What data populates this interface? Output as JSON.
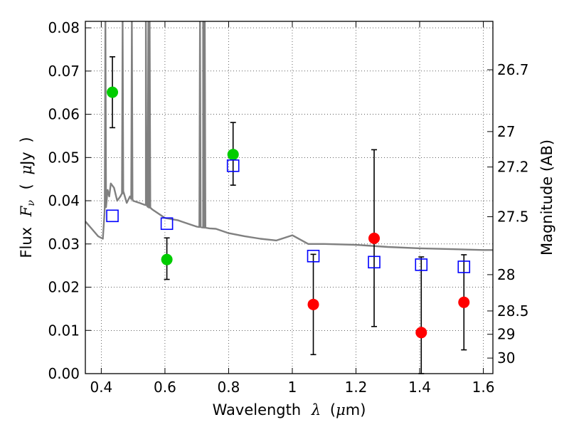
{
  "chart_data": {
    "type": "scatter",
    "xlabel": {
      "prefix": "Wavelength",
      "symbol": "λ",
      "unit_open": "(",
      "unit_mu": "μ",
      "unit_rest": "m)"
    },
    "ylabel": {
      "prefix": "Flux",
      "symbol": "F",
      "subscript": "ν",
      "unit_open": "(",
      "unit_mu": "μ",
      "unit_rest": "Jy",
      "unit_close": ")"
    },
    "y2label": "Magnitude (AB)",
    "xlim": [
      0.35,
      1.63
    ],
    "ylim": [
      0.0,
      0.0815
    ],
    "grid": true,
    "x_ticks": [
      {
        "value": 0.4,
        "label": "0.4"
      },
      {
        "value": 0.6,
        "label": "0.6"
      },
      {
        "value": 0.8,
        "label": "0.8"
      },
      {
        "value": 1.0,
        "label": "1"
      },
      {
        "value": 1.2,
        "label": "1.2"
      },
      {
        "value": 1.4,
        "label": "1.4"
      },
      {
        "value": 1.6,
        "label": "1.6"
      }
    ],
    "y_ticks": [
      {
        "value": 0.0,
        "label": "0.00"
      },
      {
        "value": 0.01,
        "label": "0.01"
      },
      {
        "value": 0.02,
        "label": "0.02"
      },
      {
        "value": 0.03,
        "label": "0.03"
      },
      {
        "value": 0.04,
        "label": "0.04"
      },
      {
        "value": 0.05,
        "label": "0.05"
      },
      {
        "value": 0.06,
        "label": "0.06"
      },
      {
        "value": 0.07,
        "label": "0.07"
      },
      {
        "value": 0.08,
        "label": "0.08"
      }
    ],
    "y2_ticks": [
      {
        "flux": 0.0703,
        "label": "26.7"
      },
      {
        "flux": 0.056,
        "label": "27"
      },
      {
        "flux": 0.0478,
        "label": "27.2"
      },
      {
        "flux": 0.0363,
        "label": "27.5"
      },
      {
        "flux": 0.0229,
        "label": "28"
      },
      {
        "flux": 0.0145,
        "label": "28.5"
      },
      {
        "flux": 0.0091,
        "label": "29"
      },
      {
        "flux": 0.0036,
        "label": "30"
      }
    ],
    "series": [
      {
        "role": "detections",
        "color": "#00cc00",
        "marker": "circle",
        "points": [
          {
            "x": 0.435,
            "y": 0.0651,
            "err_low": 0.0569,
            "err_high": 0.0733
          },
          {
            "x": 0.606,
            "y": 0.0264,
            "err_low": 0.0218,
            "err_high": 0.0314
          },
          {
            "x": 0.814,
            "y": 0.0507,
            "err_low": 0.0436,
            "err_high": 0.0581
          }
        ]
      },
      {
        "role": "upper-limits",
        "color": "#ff0000",
        "marker": "circle",
        "points": [
          {
            "x": 1.066,
            "y": 0.016,
            "err_low": 0.0044,
            "err_high": 0.0276
          },
          {
            "x": 1.257,
            "y": 0.0313,
            "err_low": 0.0109,
            "err_high": 0.0518
          },
          {
            "x": 1.405,
            "y": 0.0095,
            "err_low": 0.0,
            "err_high": 0.027
          },
          {
            "x": 1.539,
            "y": 0.0165,
            "err_low": 0.0055,
            "err_high": 0.0275
          }
        ]
      },
      {
        "role": "model-photometry",
        "color": "#0000ff",
        "marker": "open-square",
        "points": [
          {
            "x": 0.435,
            "y": 0.0365
          },
          {
            "x": 0.606,
            "y": 0.0347
          },
          {
            "x": 0.814,
            "y": 0.0481
          },
          {
            "x": 1.066,
            "y": 0.0272
          },
          {
            "x": 1.257,
            "y": 0.0258
          },
          {
            "x": 1.405,
            "y": 0.0252
          },
          {
            "x": 1.539,
            "y": 0.0247
          }
        ]
      }
    ],
    "spectrum": {
      "color": "#808080",
      "x": [
        0.35,
        0.37,
        0.39,
        0.405,
        0.41,
        0.415,
        0.42,
        0.425,
        0.43,
        0.44,
        0.45,
        0.46,
        0.47,
        0.48,
        0.49,
        0.5,
        0.52,
        0.54,
        0.56,
        0.6,
        0.64,
        0.68,
        0.7,
        0.72,
        0.74,
        0.76,
        0.8,
        0.85,
        0.9,
        0.95,
        1.0,
        1.05,
        1.1,
        1.2,
        1.3,
        1.4,
        1.5,
        1.6,
        1.63
      ],
      "y": [
        0.0352,
        0.0335,
        0.0318,
        0.0312,
        0.037,
        0.0395,
        0.0425,
        0.041,
        0.044,
        0.043,
        0.04,
        0.041,
        0.042,
        0.0395,
        0.041,
        0.04,
        0.0395,
        0.039,
        0.038,
        0.036,
        0.0355,
        0.0345,
        0.034,
        0.0338,
        0.0336,
        0.0335,
        0.0325,
        0.0318,
        0.0312,
        0.0308,
        0.032,
        0.03,
        0.03,
        0.0298,
        0.0293,
        0.029,
        0.0288,
        0.0286,
        0.0286
      ],
      "emission_lines": [
        {
          "x": 0.413,
          "peak": 0.0815
        },
        {
          "x": 0.467,
          "peak": 0.0815
        },
        {
          "x": 0.496,
          "peak": 0.0815
        },
        {
          "x": 0.54,
          "peak": 0.0815
        },
        {
          "x": 0.548,
          "peak": 0.0815
        },
        {
          "x": 0.552,
          "peak": 0.0815
        },
        {
          "x": 0.71,
          "peak": 0.0815
        },
        {
          "x": 0.72,
          "peak": 0.0815
        },
        {
          "x": 0.725,
          "peak": 0.0815
        }
      ]
    }
  }
}
